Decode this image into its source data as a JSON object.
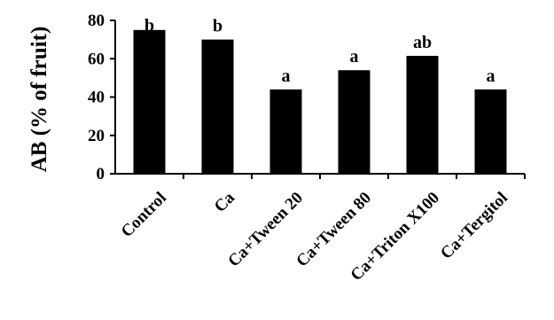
{
  "chart_data": {
    "type": "bar",
    "title": "",
    "xlabel": "",
    "ylabel": "AB (% of fruit)",
    "ylim": [
      0,
      80
    ],
    "yticks": [
      0,
      20,
      40,
      60,
      80
    ],
    "grid": false,
    "categories": [
      "Control",
      "Ca",
      "Ca+Tween 20",
      "Ca+Tween 80",
      "Ca+Triton X100",
      "Ca+Tergitol"
    ],
    "values": [
      75,
      70,
      44,
      54,
      61.5,
      44
    ],
    "letters": [
      "b",
      "b",
      "a",
      "a",
      "ab",
      "a"
    ],
    "bar_color": "#000000"
  }
}
